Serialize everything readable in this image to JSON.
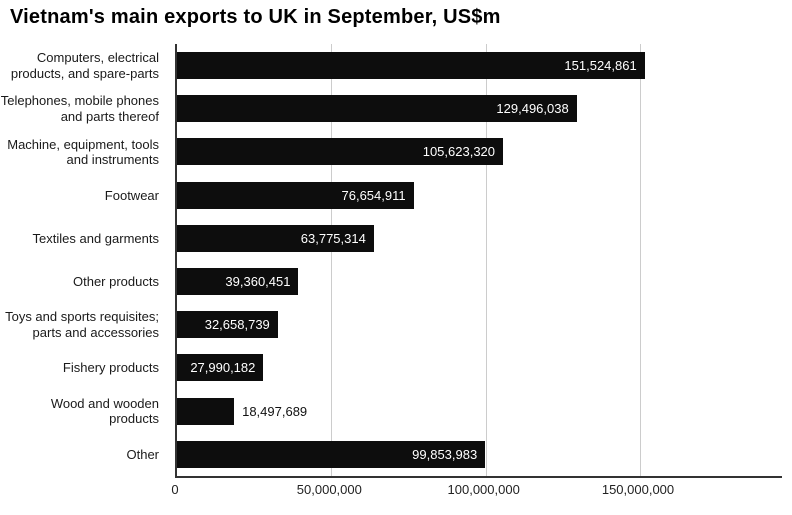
{
  "chart_data": {
    "type": "bar",
    "orientation": "horizontal",
    "title": "Vietnam's main exports to UK in September, US$m",
    "categories": [
      "Computers, electrical products, and spare-parts",
      "Telephones, mobile phones and parts thereof",
      "Machine, equipment, tools and instruments",
      "Footwear",
      "Textiles and garments",
      "Other products",
      "Toys and sports requisites; parts and accessories",
      "Fishery products",
      "Wood and wooden products",
      "Other"
    ],
    "values": [
      151524861,
      129496038,
      105623320,
      76654911,
      63775314,
      39360451,
      32658739,
      27990182,
      18497689,
      99853983
    ],
    "value_labels": [
      "151,524,861",
      "129,496,038",
      "105,623,320",
      "76,654,911",
      "63,775,314",
      "39,360,451",
      "32,658,739",
      "27,990,182",
      "18,497,689",
      "99,853,983"
    ],
    "x_ticks": [
      {
        "value": 0,
        "label": "0"
      },
      {
        "value": 50000000,
        "label": "50,000,000"
      },
      {
        "value": 100000000,
        "label": "100,000,000"
      },
      {
        "value": 150000000,
        "label": "150,000,000"
      }
    ],
    "xlim": [
      0,
      196000000
    ],
    "bar_color": "#0d0d0d",
    "grid_color": "#cccccc",
    "grid": true,
    "legend": "none"
  }
}
